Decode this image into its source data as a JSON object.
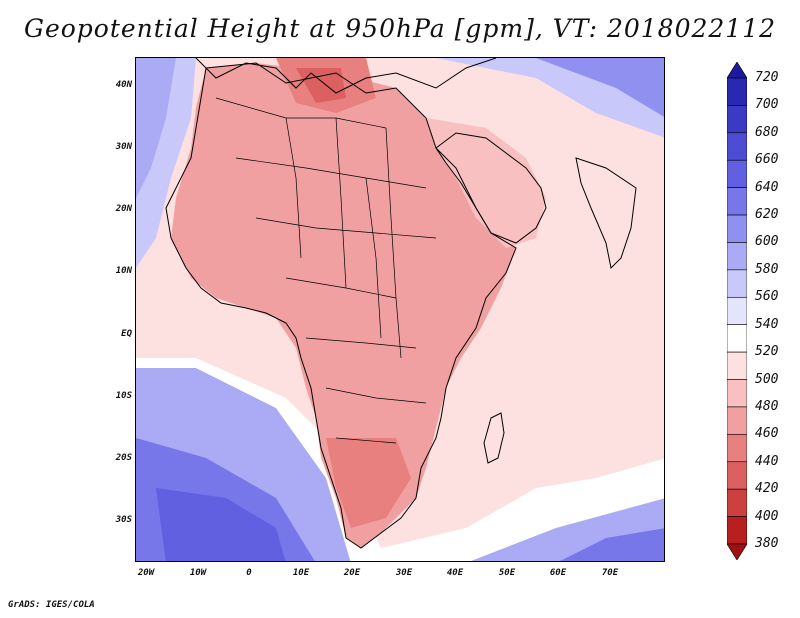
{
  "title": "Geopotential Height at 950hPa [gpm], VT: 2018022112",
  "lat_labels": [
    "40N",
    "30N",
    "20N",
    "10N",
    "EQ",
    "10S",
    "20S",
    "30S"
  ],
  "lon_labels": [
    "20W",
    "10W",
    "0",
    "10E",
    "20E",
    "30E",
    "40E",
    "50E",
    "60E",
    "70E"
  ],
  "colorbar": {
    "levels": [
      "720",
      "700",
      "680",
      "660",
      "640",
      "620",
      "600",
      "580",
      "560",
      "540",
      "520",
      "500",
      "480",
      "460",
      "440",
      "420",
      "400",
      "380"
    ],
    "colors": [
      "#1a1a9c",
      "#2828b0",
      "#3a3ac4",
      "#4c4cd4",
      "#6060e0",
      "#7777ea",
      "#9090f0",
      "#aaaaf5",
      "#c8c8fa",
      "#e4e4fd",
      "#ffffff",
      "#fde0e0",
      "#f8c0c0",
      "#f0a0a0",
      "#e88080",
      "#dd6060",
      "#cc4040",
      "#b82020",
      "#a01010"
    ]
  },
  "credit": "GrADS: IGES/COLA"
}
